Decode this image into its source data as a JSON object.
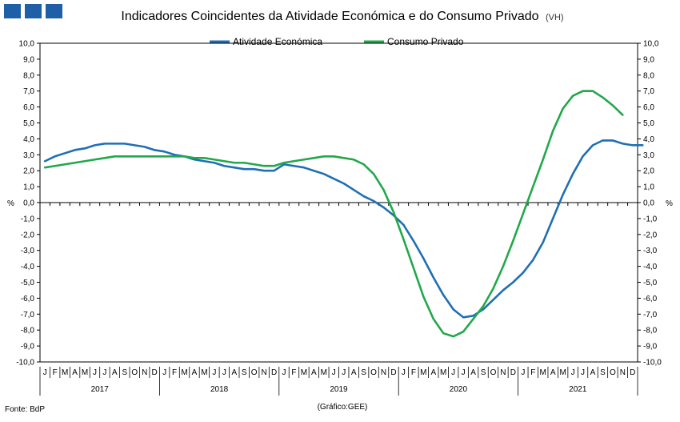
{
  "title": "Indicadores Coincidentes da Atividade Económica e do Consumo Privado",
  "title_suffix": "(VH)",
  "source": "Fonte: BdP",
  "credit": "(Gráfico:GEE)",
  "colors": {
    "logo": "#1f5fa8",
    "series1": "#1f6fb5",
    "series2": "#21a84a"
  },
  "chart_data": {
    "type": "line",
    "ylabel_left": "%",
    "ylabel_right": "%",
    "ylim": [
      -10,
      10
    ],
    "ystep": 1,
    "yticks": [
      "-10,0",
      "-9,0",
      "-8,0",
      "-7,0",
      "-6,0",
      "-5,0",
      "-4,0",
      "-3,0",
      "-2,0",
      "-1,0",
      "0,0",
      "1,0",
      "2,0",
      "3,0",
      "4,0",
      "5,0",
      "6,0",
      "7,0",
      "8,0",
      "9,0",
      "10,0"
    ],
    "legend_position": "top-center",
    "months": [
      "J",
      "F",
      "M",
      "A",
      "M",
      "J",
      "J",
      "A",
      "S",
      "O",
      "N",
      "D"
    ],
    "years": [
      "2017",
      "2018",
      "2019",
      "2020",
      "2021"
    ],
    "series": [
      {
        "name": "Atividade Económica",
        "values": [
          2.6,
          2.9,
          3.1,
          3.3,
          3.4,
          3.6,
          3.7,
          3.7,
          3.7,
          3.6,
          3.5,
          3.3,
          3.2,
          3.0,
          2.9,
          2.7,
          2.6,
          2.5,
          2.3,
          2.2,
          2.1,
          2.1,
          2.0,
          2.0,
          2.4,
          2.3,
          2.2,
          2.0,
          1.8,
          1.5,
          1.2,
          0.8,
          0.4,
          0.1,
          -0.3,
          -0.8,
          -1.4,
          -2.4,
          -3.5,
          -4.7,
          -5.8,
          -6.7,
          -7.2,
          -7.1,
          -6.7,
          -6.1,
          -5.5,
          -5.0,
          -4.4,
          -3.6,
          -2.5,
          -1.0,
          0.5,
          1.8,
          2.9,
          3.6,
          3.9,
          3.9,
          3.7,
          3.6,
          3.6
        ]
      },
      {
        "name": "Consumo Privado",
        "values": [
          2.2,
          2.3,
          2.4,
          2.5,
          2.6,
          2.7,
          2.8,
          2.9,
          2.9,
          2.9,
          2.9,
          2.9,
          2.9,
          2.9,
          2.9,
          2.8,
          2.8,
          2.7,
          2.6,
          2.5,
          2.5,
          2.4,
          2.3,
          2.3,
          2.5,
          2.6,
          2.7,
          2.8,
          2.9,
          2.9,
          2.8,
          2.7,
          2.4,
          1.8,
          0.8,
          -0.6,
          -2.3,
          -4.1,
          -5.9,
          -7.3,
          -8.2,
          -8.4,
          -8.1,
          -7.3,
          -6.5,
          -5.4,
          -4.0,
          -2.4,
          -0.7,
          1.0,
          2.7,
          4.5,
          5.9,
          6.7,
          7.0,
          7.0,
          6.6,
          6.1,
          5.5
        ]
      }
    ]
  }
}
